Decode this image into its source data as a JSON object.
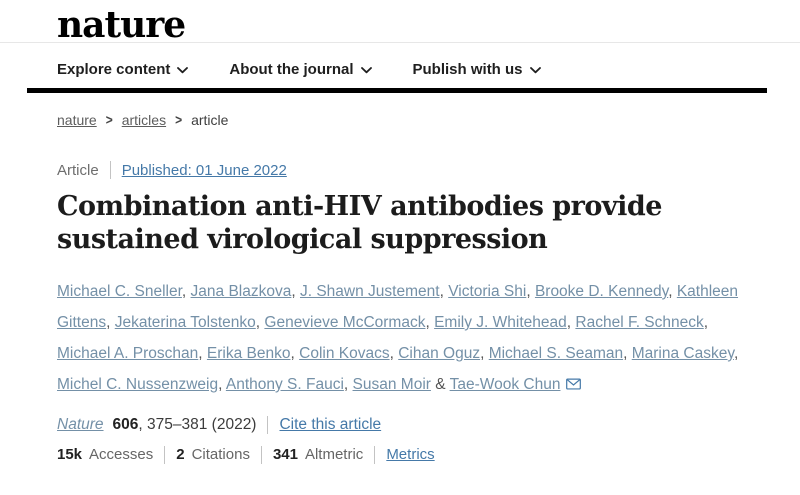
{
  "brand": {
    "logo_text": "nature"
  },
  "nav": {
    "items": [
      "Explore content",
      "About the journal",
      "Publish with us"
    ]
  },
  "breadcrumb": {
    "separator": ">",
    "items": [
      {
        "label": "nature",
        "is_link": true
      },
      {
        "label": "articles",
        "is_link": true
      },
      {
        "label": "article",
        "is_link": false
      }
    ]
  },
  "article": {
    "type_label": "Article",
    "published_link": "Published: 01 June 2022",
    "title": "Combination anti-HIV antibodies provide sustained virological suppression",
    "authors": [
      "Michael C. Sneller",
      "Jana Blazkova",
      "J. Shawn Justement",
      "Victoria Shi",
      "Brooke D. Kennedy",
      "Kathleen Gittens",
      "Jekaterina Tolstenko",
      "Genevieve McCormack",
      "Emily J. Whitehead",
      "Rachel F. Schneck",
      "Michael A. Proschan",
      "Erika Benko",
      "Colin Kovacs",
      "Cihan Oguz",
      "Michael S. Seaman",
      "Marina Caskey",
      "Michel C. Nussenzweig",
      "Anthony S. Fauci",
      "Susan Moir",
      "Tae-Wook Chun"
    ],
    "last_author_separator": "&",
    "corresponding_icon": "envelope-icon"
  },
  "citation": {
    "journal": "Nature",
    "volume": "606",
    "pages_year": ", 375–381 (2022)",
    "cite_link": "Cite this article"
  },
  "metrics": {
    "items": [
      {
        "value": "15k",
        "label": "Accesses"
      },
      {
        "value": "2",
        "label": "Citations"
      },
      {
        "value": "341",
        "label": "Altmetric"
      }
    ],
    "metrics_link": "Metrics"
  },
  "colors": {
    "link_blue": "#4579a8",
    "author_link_blue": "#7490a7",
    "nav_text": "#1f1f1f",
    "rule_black": "#000000",
    "divider_gray": "#e7e7e7",
    "label_gray": "#6e6e6e"
  }
}
